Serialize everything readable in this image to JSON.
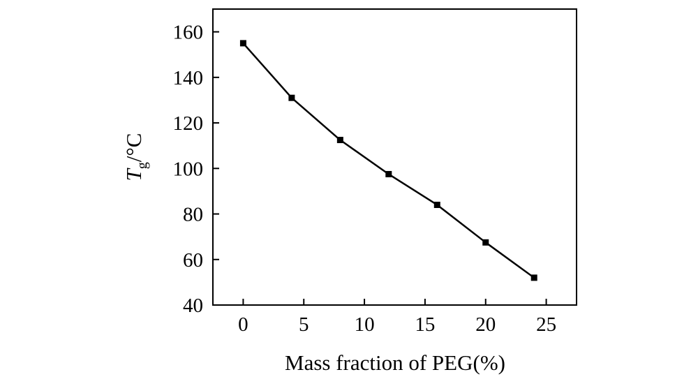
{
  "chart_data": {
    "type": "line",
    "title": "",
    "xlabel": "Mass fraction of PEG(%)",
    "ylabel": {
      "symbol": "T",
      "subscript": "g",
      "unit": "/°C"
    },
    "xlim": [
      -2.5,
      27.5
    ],
    "ylim": [
      40,
      170
    ],
    "x_ticks": [
      0,
      5,
      10,
      15,
      20,
      25
    ],
    "y_ticks": [
      40,
      60,
      80,
      100,
      120,
      140,
      160
    ],
    "x_tick_labels": [
      "0",
      "5",
      "10",
      "15",
      "20",
      "25"
    ],
    "y_tick_labels": [
      "40",
      "60",
      "80",
      "100",
      "120",
      "140",
      "160"
    ],
    "grid": false,
    "series": [
      {
        "name": "Tg",
        "marker": "square",
        "color": "#000000",
        "x": [
          0,
          4,
          8,
          12,
          16,
          20,
          24
        ],
        "y": [
          155,
          131,
          112.5,
          97.5,
          84,
          67.5,
          52
        ]
      }
    ]
  }
}
